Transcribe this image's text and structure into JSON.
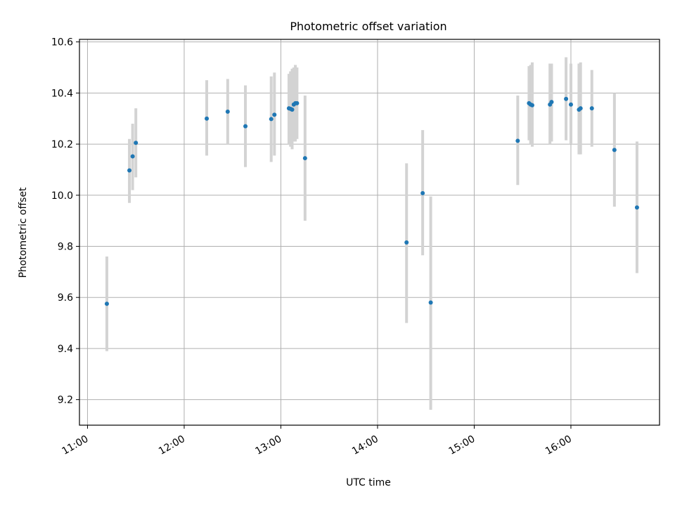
{
  "chart_data": {
    "type": "scatter",
    "title": "Photometric offset variation",
    "xlabel": "UTC time",
    "ylabel": "Photometric offset",
    "x_tick_labels": [
      "11:00",
      "12:00",
      "13:00",
      "14:00",
      "15:00",
      "16:00"
    ],
    "x_ticks": [
      "11:00",
      "12:00",
      "13:00",
      "14:00",
      "15:00",
      "16:00"
    ],
    "xlim": [
      "10:55",
      "16:55"
    ],
    "y_ticks": [
      9.2,
      9.4,
      9.6,
      9.8,
      10.0,
      10.2,
      10.4,
      10.6
    ],
    "y_tick_labels": [
      "9.2",
      "9.4",
      "9.6",
      "9.8",
      "10.0",
      "10.2",
      "10.4",
      "10.6"
    ],
    "ylim": [
      9.1,
      10.61
    ],
    "grid": true,
    "marker_color": "#1f77b4",
    "errorbar_color": "#d3d3d3",
    "points": [
      {
        "x": "11:12",
        "y": 9.575,
        "lo": 9.39,
        "hi": 9.76
      },
      {
        "x": "11:26",
        "y": 10.097,
        "lo": 9.97,
        "hi": 10.22
      },
      {
        "x": "11:28",
        "y": 10.152,
        "lo": 10.02,
        "hi": 10.28
      },
      {
        "x": "11:30",
        "y": 10.205,
        "lo": 10.07,
        "hi": 10.34
      },
      {
        "x": "12:14",
        "y": 10.3,
        "lo": 10.155,
        "hi": 10.45
      },
      {
        "x": "12:27",
        "y": 10.327,
        "lo": 10.2,
        "hi": 10.455
      },
      {
        "x": "12:38",
        "y": 10.27,
        "lo": 10.11,
        "hi": 10.43
      },
      {
        "x": "12:54",
        "y": 10.298,
        "lo": 10.13,
        "hi": 10.465
      },
      {
        "x": "12:56",
        "y": 10.315,
        "lo": 10.155,
        "hi": 10.48
      },
      {
        "x": "13:05",
        "y": 10.34,
        "lo": 10.2,
        "hi": 10.475
      },
      {
        "x": "13:06",
        "y": 10.338,
        "lo": 10.19,
        "hi": 10.485
      },
      {
        "x": "13:07",
        "y": 10.335,
        "lo": 10.18,
        "hi": 10.495
      },
      {
        "x": "13:08",
        "y": 10.355,
        "lo": 10.21,
        "hi": 10.5
      },
      {
        "x": "13:09",
        "y": 10.36,
        "lo": 10.21,
        "hi": 10.51
      },
      {
        "x": "13:10",
        "y": 10.36,
        "lo": 10.22,
        "hi": 10.5
      },
      {
        "x": "13:15",
        "y": 10.145,
        "lo": 9.9,
        "hi": 10.39
      },
      {
        "x": "14:18",
        "y": 9.815,
        "lo": 9.5,
        "hi": 10.125
      },
      {
        "x": "14:28",
        "y": 10.008,
        "lo": 9.765,
        "hi": 10.255
      },
      {
        "x": "14:33",
        "y": 9.58,
        "lo": 9.16,
        "hi": 9.995
      },
      {
        "x": "15:27",
        "y": 10.213,
        "lo": 10.04,
        "hi": 10.39
      },
      {
        "x": "15:34",
        "y": 10.36,
        "lo": 10.215,
        "hi": 10.505
      },
      {
        "x": "15:35",
        "y": 10.355,
        "lo": 10.2,
        "hi": 10.51
      },
      {
        "x": "15:36",
        "y": 10.352,
        "lo": 10.19,
        "hi": 10.52
      },
      {
        "x": "15:47",
        "y": 10.355,
        "lo": 10.2,
        "hi": 10.515
      },
      {
        "x": "15:48",
        "y": 10.365,
        "lo": 10.21,
        "hi": 10.515
      },
      {
        "x": "15:57",
        "y": 10.377,
        "lo": 10.215,
        "hi": 10.54
      },
      {
        "x": "16:00",
        "y": 10.355,
        "lo": 10.2,
        "hi": 10.515
      },
      {
        "x": "16:05",
        "y": 10.335,
        "lo": 10.16,
        "hi": 10.515
      },
      {
        "x": "16:06",
        "y": 10.34,
        "lo": 10.16,
        "hi": 10.52
      },
      {
        "x": "16:13",
        "y": 10.34,
        "lo": 10.19,
        "hi": 10.49
      },
      {
        "x": "16:27",
        "y": 10.177,
        "lo": 9.955,
        "hi": 10.4
      },
      {
        "x": "16:41",
        "y": 9.952,
        "lo": 9.695,
        "hi": 10.21
      }
    ]
  }
}
